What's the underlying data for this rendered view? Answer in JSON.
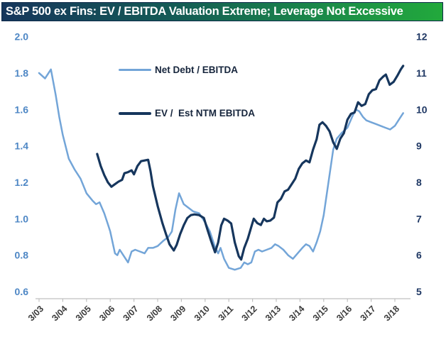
{
  "header": {
    "title": "S&P 500 ex Fins: EV / EBITDA Valuation Extreme; Leverage Not Excessive",
    "bg_color_left": "#16365C",
    "bg_color_right": "#22A93C",
    "text_color": "#FFFFFF"
  },
  "chart_data": {
    "type": "line",
    "title": "S&P 500 ex Fins: EV / EBITDA Valuation Extreme; Leverage Not Excessive",
    "grid": false,
    "legend_position": "inside-top-left",
    "x_unit": "years_since_2003_03",
    "x_axis": {
      "tick_labels": [
        "3/03",
        "3/04",
        "3/05",
        "3/06",
        "3/07",
        "3/08",
        "3/09",
        "3/10",
        "3/11",
        "3/12",
        "3/13",
        "3/14",
        "3/15",
        "3/16",
        "3/17",
        "3/18"
      ],
      "tick_values": [
        0,
        1,
        2,
        3,
        4,
        5,
        6,
        7,
        8,
        9,
        10,
        11,
        12,
        13,
        14,
        15
      ],
      "label_color": "#3A3A3A",
      "axis_color": "#C0C0C0"
    },
    "left_y_axis": {
      "range": [
        0.6,
        2.0
      ],
      "tick_labels": [
        "2.0",
        "1.8",
        "1.6",
        "1.4",
        "1.2",
        "1.0",
        "0.8",
        "0.6"
      ],
      "tick_values": [
        2.0,
        1.8,
        1.6,
        1.4,
        1.2,
        1.0,
        0.8,
        0.6
      ],
      "color": "#4E87C5",
      "series": "Net Debt / EBITDA"
    },
    "right_y_axis": {
      "range": [
        5,
        12
      ],
      "tick_labels": [
        "12",
        "11",
        "10",
        "9",
        "8",
        "7",
        "6",
        "5"
      ],
      "tick_values": [
        12,
        11,
        10,
        9,
        8,
        7,
        6,
        5
      ],
      "color": "#1F3864",
      "series": "EV / Est NTM EBITDA"
    },
    "series": [
      {
        "name": "Net Debt / EBITDA",
        "axis": "left",
        "color": "#73A5D8",
        "stroke_width": 2.5,
        "points": [
          [
            0,
            1.8
          ],
          [
            0.25,
            1.77
          ],
          [
            0.5,
            1.82
          ],
          [
            0.7,
            1.68
          ],
          [
            0.85,
            1.56
          ],
          [
            1.0,
            1.46
          ],
          [
            1.25,
            1.33
          ],
          [
            1.5,
            1.27
          ],
          [
            1.75,
            1.22
          ],
          [
            2.0,
            1.14
          ],
          [
            2.25,
            1.1
          ],
          [
            2.4,
            1.08
          ],
          [
            2.55,
            1.09
          ],
          [
            2.75,
            1.03
          ],
          [
            2.9,
            0.97
          ],
          [
            3.0,
            0.93
          ],
          [
            3.2,
            0.81
          ],
          [
            3.3,
            0.8
          ],
          [
            3.4,
            0.83
          ],
          [
            3.55,
            0.8
          ],
          [
            3.75,
            0.76
          ],
          [
            3.9,
            0.82
          ],
          [
            4.05,
            0.83
          ],
          [
            4.25,
            0.82
          ],
          [
            4.45,
            0.81
          ],
          [
            4.6,
            0.84
          ],
          [
            4.8,
            0.84
          ],
          [
            5.0,
            0.85
          ],
          [
            5.25,
            0.88
          ],
          [
            5.45,
            0.9
          ],
          [
            5.6,
            0.93
          ],
          [
            5.75,
            1.05
          ],
          [
            5.9,
            1.14
          ],
          [
            6.1,
            1.08
          ],
          [
            6.3,
            1.06
          ],
          [
            6.5,
            1.04
          ],
          [
            6.75,
            1.03
          ],
          [
            7.0,
            0.98
          ],
          [
            7.2,
            0.93
          ],
          [
            7.4,
            0.85
          ],
          [
            7.55,
            0.81
          ],
          [
            7.65,
            0.84
          ],
          [
            7.8,
            0.78
          ],
          [
            8.0,
            0.73
          ],
          [
            8.25,
            0.72
          ],
          [
            8.5,
            0.73
          ],
          [
            8.65,
            0.76
          ],
          [
            8.8,
            0.75
          ],
          [
            8.95,
            0.76
          ],
          [
            9.1,
            0.82
          ],
          [
            9.25,
            0.83
          ],
          [
            9.4,
            0.82
          ],
          [
            9.6,
            0.83
          ],
          [
            9.8,
            0.84
          ],
          [
            9.95,
            0.86
          ],
          [
            10.1,
            0.85
          ],
          [
            10.3,
            0.83
          ],
          [
            10.5,
            0.8
          ],
          [
            10.7,
            0.78
          ],
          [
            10.9,
            0.81
          ],
          [
            11.1,
            0.84
          ],
          [
            11.25,
            0.86
          ],
          [
            11.4,
            0.85
          ],
          [
            11.55,
            0.82
          ],
          [
            11.7,
            0.87
          ],
          [
            11.85,
            0.93
          ],
          [
            12.0,
            1.02
          ],
          [
            12.2,
            1.2
          ],
          [
            12.4,
            1.38
          ],
          [
            12.55,
            1.44
          ],
          [
            12.75,
            1.47
          ],
          [
            13.0,
            1.5
          ],
          [
            13.2,
            1.56
          ],
          [
            13.35,
            1.6
          ],
          [
            13.5,
            1.59
          ],
          [
            13.65,
            1.56
          ],
          [
            13.8,
            1.54
          ],
          [
            14.0,
            1.53
          ],
          [
            14.2,
            1.52
          ],
          [
            14.4,
            1.51
          ],
          [
            14.6,
            1.5
          ],
          [
            14.8,
            1.49
          ],
          [
            15.0,
            1.51
          ],
          [
            15.2,
            1.55
          ],
          [
            15.35,
            1.58
          ]
        ]
      },
      {
        "name": "EV /  Est NTM EBITDA",
        "axis": "right",
        "color": "#16365D",
        "stroke_width": 3.2,
        "points": [
          [
            2.45,
            8.78
          ],
          [
            2.6,
            8.45
          ],
          [
            2.75,
            8.2
          ],
          [
            2.9,
            8.0
          ],
          [
            3.05,
            7.88
          ],
          [
            3.2,
            7.95
          ],
          [
            3.35,
            8.02
          ],
          [
            3.5,
            8.07
          ],
          [
            3.6,
            8.25
          ],
          [
            3.75,
            8.28
          ],
          [
            3.9,
            8.33
          ],
          [
            4.0,
            8.22
          ],
          [
            4.15,
            8.45
          ],
          [
            4.3,
            8.58
          ],
          [
            4.45,
            8.6
          ],
          [
            4.6,
            8.62
          ],
          [
            4.7,
            8.3
          ],
          [
            4.8,
            7.9
          ],
          [
            5.0,
            7.35
          ],
          [
            5.2,
            6.88
          ],
          [
            5.35,
            6.58
          ],
          [
            5.5,
            6.3
          ],
          [
            5.68,
            6.13
          ],
          [
            5.8,
            6.28
          ],
          [
            5.95,
            6.58
          ],
          [
            6.1,
            6.82
          ],
          [
            6.25,
            7.02
          ],
          [
            6.4,
            7.1
          ],
          [
            6.55,
            7.12
          ],
          [
            6.75,
            7.1
          ],
          [
            6.95,
            7.02
          ],
          [
            7.1,
            6.7
          ],
          [
            7.25,
            6.4
          ],
          [
            7.42,
            6.08
          ],
          [
            7.55,
            6.35
          ],
          [
            7.68,
            6.82
          ],
          [
            7.8,
            7.0
          ],
          [
            7.95,
            6.95
          ],
          [
            8.1,
            6.87
          ],
          [
            8.25,
            6.35
          ],
          [
            8.42,
            5.97
          ],
          [
            8.52,
            5.88
          ],
          [
            8.65,
            6.2
          ],
          [
            8.8,
            6.45
          ],
          [
            8.95,
            6.78
          ],
          [
            9.05,
            7.0
          ],
          [
            9.2,
            6.88
          ],
          [
            9.35,
            6.83
          ],
          [
            9.48,
            7.0
          ],
          [
            9.6,
            6.93
          ],
          [
            9.75,
            6.95
          ],
          [
            9.9,
            7.03
          ],
          [
            10.05,
            7.45
          ],
          [
            10.2,
            7.55
          ],
          [
            10.35,
            7.75
          ],
          [
            10.5,
            7.8
          ],
          [
            10.65,
            7.95
          ],
          [
            10.8,
            8.1
          ],
          [
            10.95,
            8.37
          ],
          [
            11.1,
            8.52
          ],
          [
            11.25,
            8.6
          ],
          [
            11.4,
            8.55
          ],
          [
            11.55,
            8.9
          ],
          [
            11.7,
            9.18
          ],
          [
            11.82,
            9.58
          ],
          [
            11.95,
            9.65
          ],
          [
            12.1,
            9.55
          ],
          [
            12.25,
            9.4
          ],
          [
            12.4,
            9.1
          ],
          [
            12.55,
            8.92
          ],
          [
            12.7,
            9.2
          ],
          [
            12.85,
            9.35
          ],
          [
            13.0,
            9.72
          ],
          [
            13.15,
            9.88
          ],
          [
            13.3,
            9.92
          ],
          [
            13.45,
            10.2
          ],
          [
            13.6,
            10.1
          ],
          [
            13.75,
            10.15
          ],
          [
            13.9,
            10.42
          ],
          [
            14.05,
            10.53
          ],
          [
            14.2,
            10.56
          ],
          [
            14.35,
            10.8
          ],
          [
            14.5,
            10.9
          ],
          [
            14.62,
            10.96
          ],
          [
            14.78,
            10.68
          ],
          [
            14.95,
            10.76
          ],
          [
            15.1,
            10.92
          ],
          [
            15.25,
            11.1
          ],
          [
            15.35,
            11.2
          ]
        ]
      }
    ]
  }
}
